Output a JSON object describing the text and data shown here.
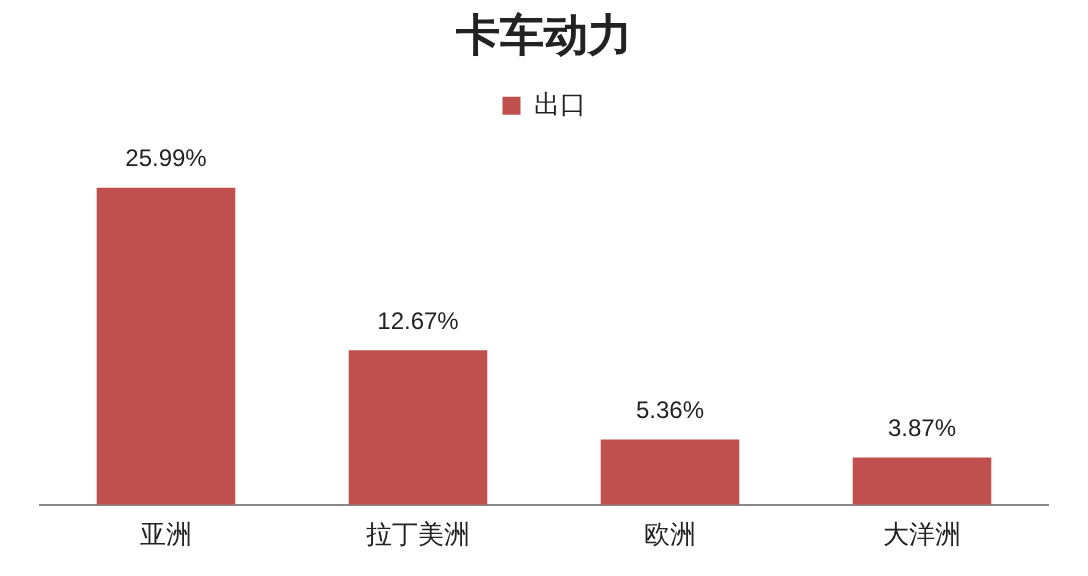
{
  "chart_data": {
    "type": "bar",
    "title": "卡车动力",
    "categories": [
      "亚洲",
      "拉丁美洲",
      "欧洲",
      "大洋洲"
    ],
    "series": [
      {
        "name": "出口",
        "color": "#c0504d",
        "values": [
          25.99,
          12.67,
          5.36,
          3.87
        ],
        "value_labels": [
          "25.99%",
          "12.67%",
          "5.36%",
          "3.87%"
        ]
      }
    ],
    "legend": "top",
    "grid": false,
    "tick_labels": "x"
  }
}
